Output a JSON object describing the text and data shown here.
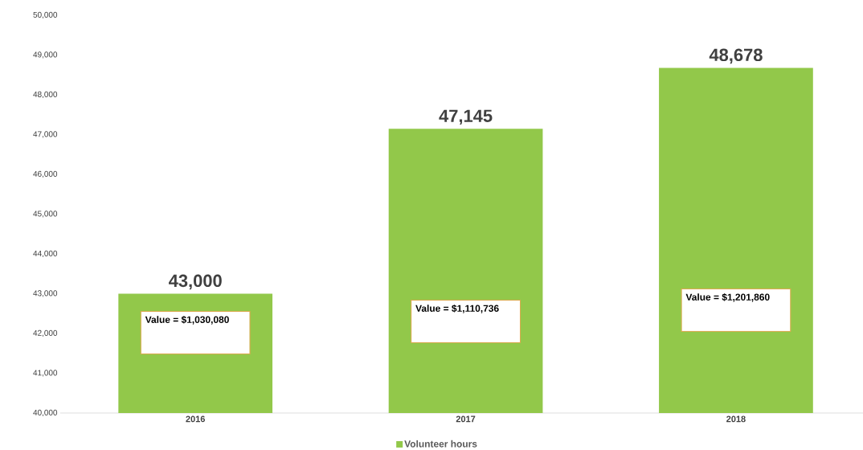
{
  "chart_data": {
    "type": "bar",
    "categories": [
      "2016",
      "2017",
      "2018"
    ],
    "series": [
      {
        "name": "Volunteer hours",
        "color": "#92c84a",
        "values": [
          43000,
          47145,
          48678
        ]
      }
    ],
    "value_labels": [
      "43,000",
      "47,145",
      "48,678"
    ],
    "ylim": [
      40000,
      50000
    ],
    "yticks": [
      {
        "value": 40000,
        "label": "40,000"
      },
      {
        "value": 41000,
        "label": "41,000"
      },
      {
        "value": 42000,
        "label": "42,000"
      },
      {
        "value": 43000,
        "label": "43,000"
      },
      {
        "value": 44000,
        "label": "44,000"
      },
      {
        "value": 45000,
        "label": "45,000"
      },
      {
        "value": 46000,
        "label": "46,000"
      },
      {
        "value": 47000,
        "label": "47,000"
      },
      {
        "value": 48000,
        "label": "48,000"
      },
      {
        "value": 49000,
        "label": "49,000"
      },
      {
        "value": 50000,
        "label": "50,000"
      }
    ],
    "annotations": [
      "Value = $1,030,080",
      "Value = $1,110,736",
      "Value = $1,201,860"
    ],
    "grid": false,
    "legend": "bottom"
  }
}
